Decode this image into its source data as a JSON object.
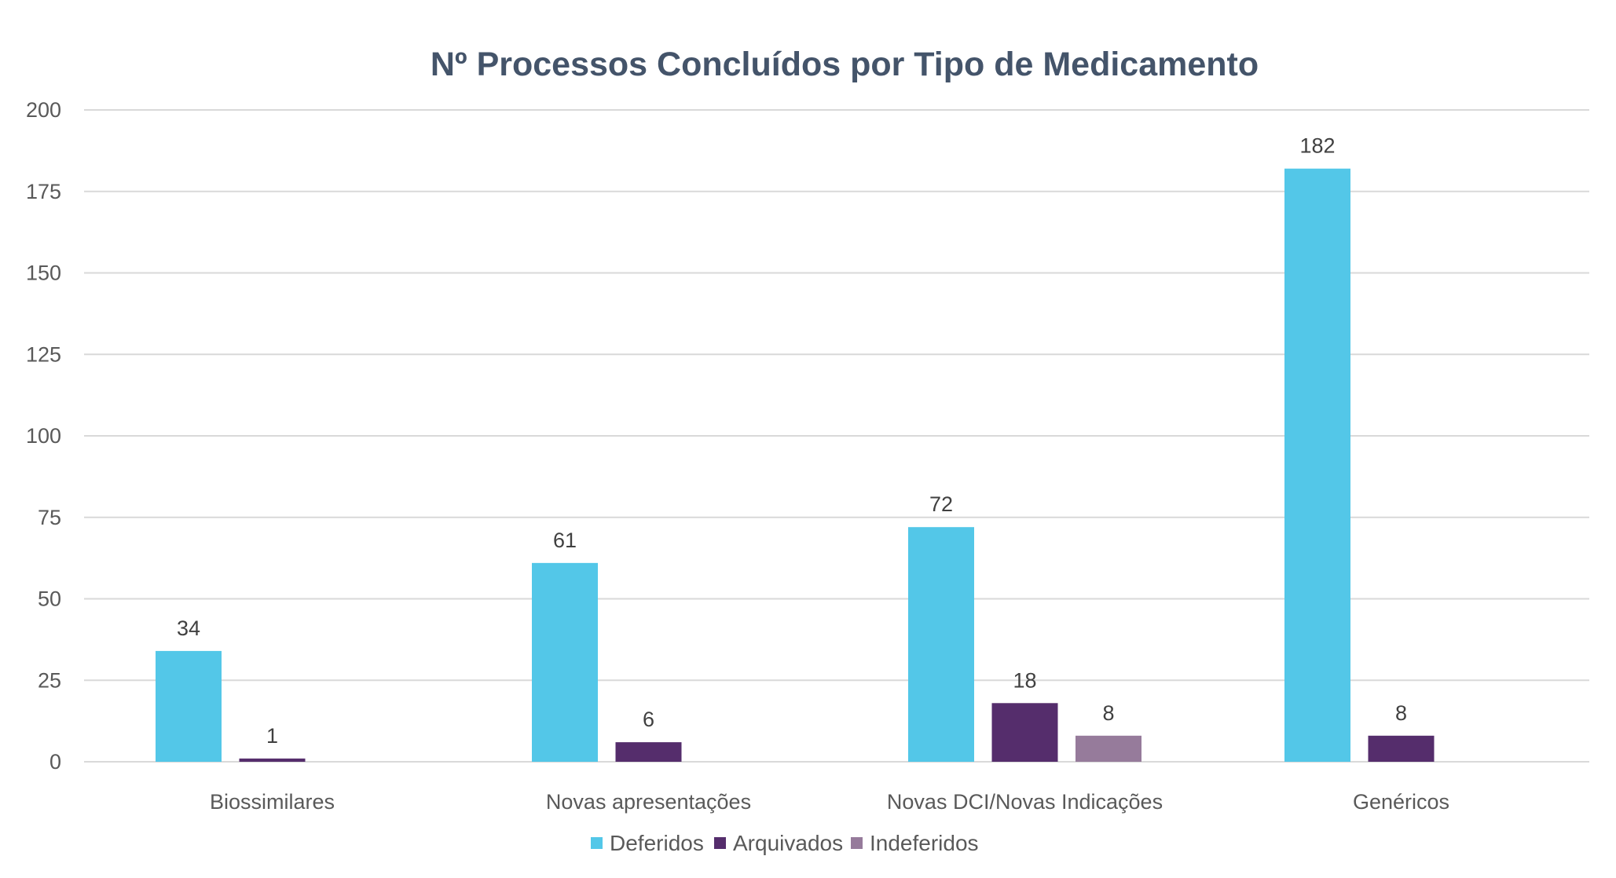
{
  "chart_data": {
    "type": "bar",
    "title": "Nº Processos Concluídos por Tipo de Medicamento",
    "xlabel": "",
    "ylabel": "",
    "ylim": [
      0,
      200
    ],
    "yticks": [
      0,
      25,
      50,
      75,
      100,
      125,
      150,
      175,
      200
    ],
    "grid": true,
    "legend_position": "bottom",
    "categories": [
      "Biossimilares",
      "Novas apresentações",
      "Novas DCI/Novas Indicações",
      "Genéricos"
    ],
    "series": [
      {
        "name": "Deferidos",
        "color": "#53C7E8",
        "values": [
          34,
          61,
          72,
          182
        ]
      },
      {
        "name": "Arquivados",
        "color": "#552D6C",
        "values": [
          1,
          6,
          18,
          8
        ]
      },
      {
        "name": "Indeferidos",
        "color": "#967B9B",
        "values": [
          null,
          null,
          8,
          null
        ]
      }
    ]
  }
}
